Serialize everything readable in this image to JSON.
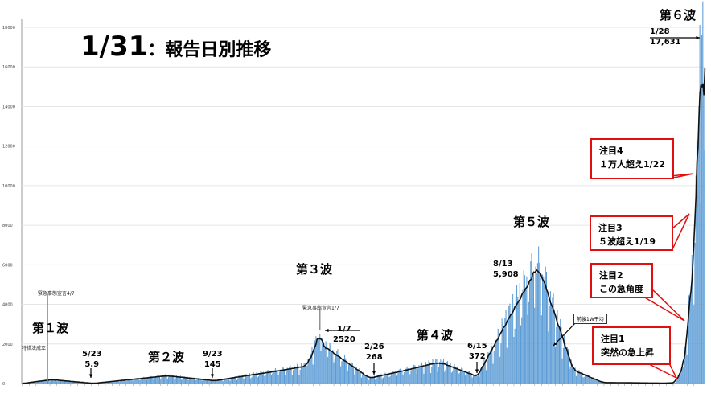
{
  "title": {
    "date": "1/31",
    "suffix": "：報告日別推移"
  },
  "waves": [
    {
      "label": "第１波"
    },
    {
      "label": "第２波"
    },
    {
      "label": "第３波"
    },
    {
      "label": "第４波"
    },
    {
      "label": "第５波"
    },
    {
      "label": "第６波"
    }
  ],
  "annotations": [
    {
      "date": "5/23",
      "value": "5.9"
    },
    {
      "date": "9/23",
      "value": "145"
    },
    {
      "date": "1/7",
      "value": "2520"
    },
    {
      "date": "2/26",
      "value": "268"
    },
    {
      "date": "6/15",
      "value": "372"
    },
    {
      "date": "8/13",
      "value": "5,908"
    },
    {
      "date": "1/28",
      "value": "17,631"
    }
  ],
  "small_notes": {
    "emergency_1": "緊急事態宣言4/7",
    "emergency_2": "緊急事態宣言1/7",
    "law": "特措法成立",
    "avg": "前後1W平均"
  },
  "callouts": [
    {
      "title": "注目1",
      "text": "突然の急上昇"
    },
    {
      "title": "注目2",
      "text": "この急角度"
    },
    {
      "title": "注目3",
      "text": "５波超え1/19"
    },
    {
      "title": "注目4",
      "text": "１万人超え1/22"
    }
  ],
  "colors": {
    "bar": "#5b9bd5",
    "avg_line": "#111111",
    "callout_border": "#e01010",
    "grid": "#e6e6e6"
  },
  "chart_data": {
    "type": "bar",
    "description_free": true,
    "y_ticks": [
      0,
      2000,
      4000,
      6000,
      8000,
      10000,
      12000,
      14000,
      16000,
      18000
    ],
    "ylim": [
      0,
      18000
    ],
    "xlim": [
      "2020-03-12",
      "2022-01-31"
    ],
    "series": [
      {
        "name": "報告日別",
        "kind": "bar"
      },
      {
        "name": "前後1W平均",
        "kind": "line"
      }
    ],
    "key_points": [
      {
        "date": "2020-04-11",
        "value": 200
      },
      {
        "date": "2020-05-23",
        "value": 5.9
      },
      {
        "date": "2020-08-05",
        "value": 400
      },
      {
        "date": "2020-09-23",
        "value": 145
      },
      {
        "date": "2020-12-25",
        "value": 900
      },
      {
        "date": "2021-01-07",
        "value": 2520
      },
      {
        "date": "2021-01-10",
        "value": 2000
      },
      {
        "date": "2021-02-26",
        "value": 268
      },
      {
        "date": "2021-05-08",
        "value": 1100
      },
      {
        "date": "2021-06-15",
        "value": 372
      },
      {
        "date": "2021-08-13",
        "value": 5908
      },
      {
        "date": "2021-08-20",
        "value": 5500
      },
      {
        "date": "2021-09-20",
        "value": 700
      },
      {
        "date": "2021-10-20",
        "value": 50
      },
      {
        "date": "2021-12-20",
        "value": 20
      },
      {
        "date": "2022-01-01",
        "value": 40
      },
      {
        "date": "2022-01-10",
        "value": 1000
      },
      {
        "date": "2022-01-19",
        "value": 6000
      },
      {
        "date": "2022-01-22",
        "value": 10500
      },
      {
        "date": "2022-01-25",
        "value": 14000
      },
      {
        "date": "2022-01-28",
        "value": 17631
      },
      {
        "date": "2022-01-30",
        "value": 15000
      },
      {
        "date": "2022-01-31",
        "value": 11800
      }
    ]
  }
}
